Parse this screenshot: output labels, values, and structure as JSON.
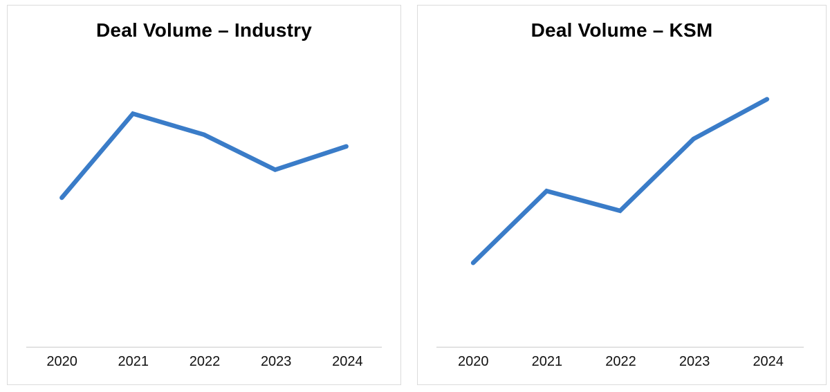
{
  "colors": {
    "background": "#FFFFFF",
    "line": "#3A7CC8",
    "axis_line": "#D9D9D9",
    "panel_border": "#DBDBDB",
    "title_text": "#000000",
    "tick_text": "#111111"
  },
  "chart_data": [
    {
      "type": "line",
      "title": "Deal Volume – Industry",
      "categories": [
        "2020",
        "2021",
        "2022",
        "2023",
        "2024"
      ],
      "values": [
        64,
        100,
        91,
        76,
        86
      ],
      "xlabel": "",
      "ylabel": "",
      "y_axis_labels": [],
      "ylim": [
        0,
        100
      ],
      "grid": false,
      "legend": "none"
    },
    {
      "type": "line",
      "title": "Deal Volume – KSM",
      "categories": [
        "2020",
        "2021",
        "2022",
        "2023",
        "2024"
      ],
      "values": [
        34,
        63,
        55,
        84,
        100
      ],
      "xlabel": "",
      "ylabel": "",
      "y_axis_labels": [],
      "ylim": [
        0,
        100
      ],
      "grid": false,
      "legend": "none"
    }
  ]
}
